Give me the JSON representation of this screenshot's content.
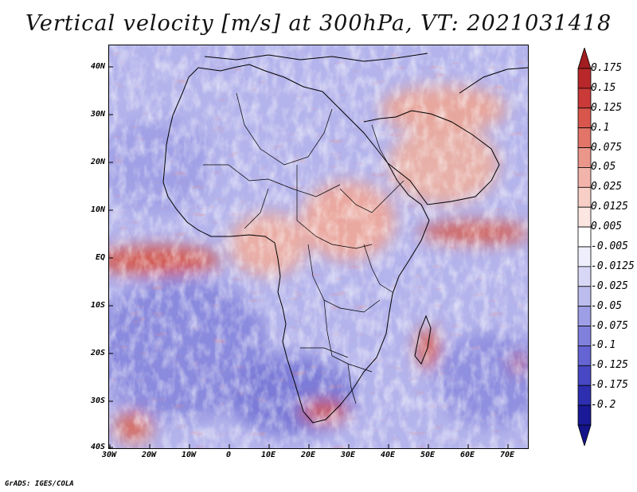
{
  "title": "Vertical velocity [m/s] at 300hPa, VT: 2021031418",
  "map": {
    "variable": "Vertical velocity",
    "units": "m/s",
    "level": "300hPa",
    "valid_time": "2021031418",
    "lat_ticks": [
      "40N",
      "30N",
      "20N",
      "10N",
      "EQ",
      "10S",
      "20S",
      "30S",
      "40S"
    ],
    "lon_ticks": [
      "30W",
      "20W",
      "10W",
      "0",
      "10E",
      "20E",
      "30E",
      "40E",
      "50E",
      "60E",
      "70E"
    ],
    "lat_range": [
      -40,
      45
    ],
    "lon_range": [
      -30,
      75
    ]
  },
  "colorbar": {
    "levels": [
      "0.175",
      "0.15",
      "0.125",
      "0.1",
      "0.075",
      "0.05",
      "0.025",
      "0.0125",
      "0.005",
      "-0.005",
      "-0.0125",
      "-0.025",
      "-0.05",
      "-0.075",
      "-0.1",
      "-0.125",
      "-0.175",
      "-0.2"
    ],
    "colors": [
      "#b8282a",
      "#c93a38",
      "#d8564c",
      "#e27568",
      "#eb968a",
      "#f2b4aa",
      "#f7cfc7",
      "#fbe6e2",
      "#ffffff",
      "#eeeefc",
      "#d8d8f6",
      "#bcbcee",
      "#9e9ee6",
      "#8080dc",
      "#6464d2",
      "#4848c4",
      "#2e2eb0",
      "#1a1a96"
    ],
    "top_triangle_color": "#a11d20",
    "bottom_triangle_color": "#14138a"
  },
  "credit": "GrADS: IGES/COLA"
}
